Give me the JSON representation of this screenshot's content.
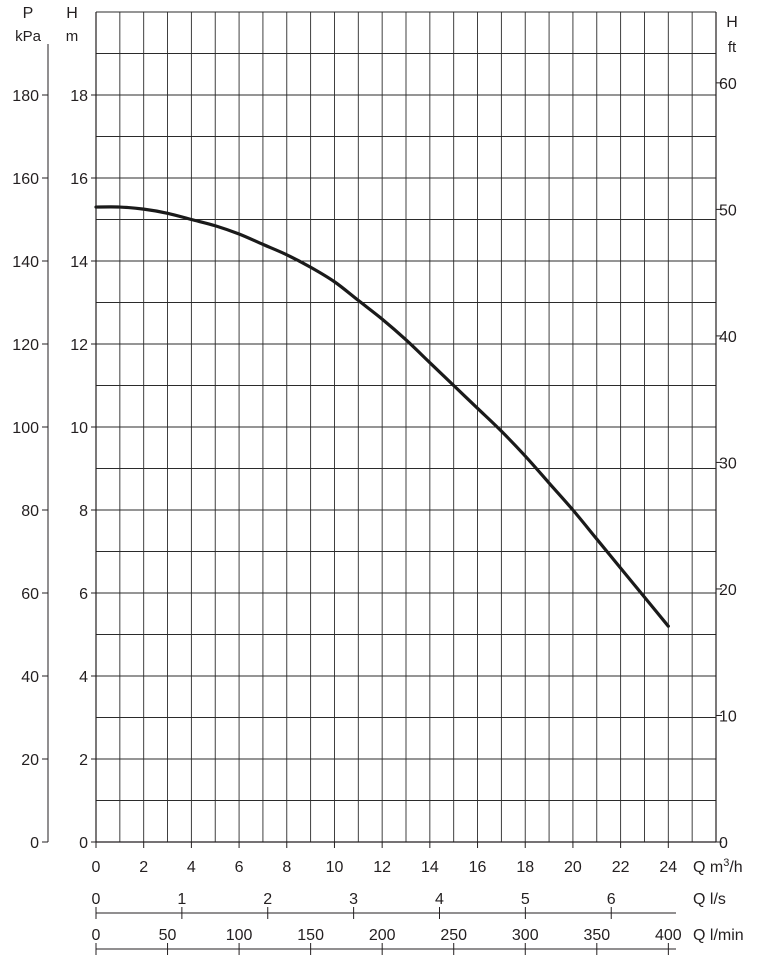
{
  "chart_data": {
    "type": "line",
    "left_axes": {
      "pressure": {
        "label": "P",
        "unit": "kPa",
        "range": [
          0,
          200
        ],
        "ticks": [
          0,
          20,
          40,
          60,
          80,
          100,
          120,
          140,
          160,
          180
        ]
      },
      "head_m": {
        "label": "H",
        "unit": "m",
        "range": [
          0,
          20
        ],
        "ticks": [
          0,
          2,
          4,
          6,
          8,
          10,
          12,
          14,
          16,
          18
        ]
      }
    },
    "right_axis": {
      "label": "H",
      "unit": "ft",
      "range": [
        0,
        65.6
      ],
      "ticks": [
        0,
        10,
        20,
        30,
        40,
        50,
        60
      ],
      "tick_labels": [
        "0",
        "10",
        "20",
        "30",
        "40",
        "50",
        "60"
      ]
    },
    "bottom_axes": [
      {
        "label": "Q m³/h",
        "range": [
          0,
          26
        ],
        "ticks": [
          0,
          2,
          4,
          6,
          8,
          10,
          12,
          14,
          16,
          18,
          20,
          22,
          24
        ],
        "tick_labels": [
          "0",
          "2",
          "4",
          "6",
          "8",
          "10",
          "12",
          "14",
          "16",
          "18",
          "20",
          "22",
          "24"
        ]
      },
      {
        "label": "Q l/s",
        "range": [
          0,
          7.22
        ],
        "ticks": [
          0,
          1,
          2,
          3,
          4,
          5,
          6
        ],
        "tick_labels": [
          "0",
          "1",
          "2",
          "3",
          "4",
          "5",
          "6"
        ]
      },
      {
        "label": "Q l/min",
        "range": [
          0,
          433.3
        ],
        "ticks": [
          0,
          50,
          100,
          150,
          200,
          250,
          300,
          350,
          400
        ],
        "tick_labels": [
          "0",
          "50",
          "100",
          "150",
          "200",
          "250",
          "300",
          "350",
          "400"
        ]
      }
    ],
    "grid": true,
    "series": [
      {
        "x_unit": "m3/h",
        "y_unit": "m",
        "x": [
          0,
          1,
          2,
          3,
          4,
          5,
          6,
          7,
          8,
          9,
          10,
          11,
          12,
          13,
          14,
          15,
          16,
          17,
          18,
          19,
          20,
          21,
          22,
          23,
          24
        ],
        "y": [
          15.3,
          15.3,
          15.25,
          15.15,
          15.0,
          14.85,
          14.65,
          14.4,
          14.15,
          13.85,
          13.5,
          13.05,
          12.6,
          12.1,
          11.55,
          11.0,
          10.45,
          9.9,
          9.3,
          8.65,
          8.0,
          7.3,
          6.6,
          5.9,
          5.2
        ],
        "color": "#1a1a1a"
      }
    ]
  }
}
